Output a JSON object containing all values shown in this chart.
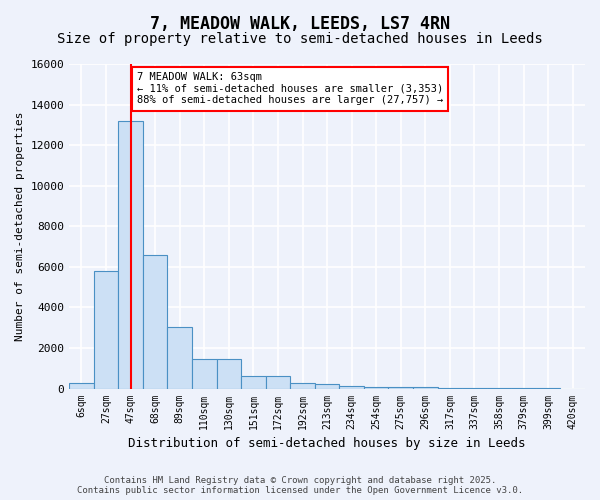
{
  "title": "7, MEADOW WALK, LEEDS, LS7 4RN",
  "subtitle": "Size of property relative to semi-detached houses in Leeds",
  "xlabel": "Distribution of semi-detached houses by size in Leeds",
  "ylabel": "Number of semi-detached properties",
  "bin_labels": [
    "6sqm",
    "27sqm",
    "47sqm",
    "68sqm",
    "89sqm",
    "110sqm",
    "130sqm",
    "151sqm",
    "172sqm",
    "192sqm",
    "213sqm",
    "234sqm",
    "254sqm",
    "275sqm",
    "296sqm",
    "317sqm",
    "337sqm",
    "358sqm",
    "379sqm",
    "399sqm",
    "420sqm"
  ],
  "bar_values": [
    250,
    5800,
    13200,
    6600,
    3050,
    1450,
    1450,
    600,
    600,
    250,
    200,
    150,
    100,
    80,
    60,
    40,
    30,
    20,
    10,
    5,
    0
  ],
  "bar_color": "#cce0f5",
  "bar_edge_color": "#4a90c4",
  "property_size": 63,
  "red_line_x": 2,
  "annotation_text": "7 MEADOW WALK: 63sqm\n← 11% of semi-detached houses are smaller (3,353)\n88% of semi-detached houses are larger (27,757) →",
  "ylim": [
    0,
    16000
  ],
  "yticks": [
    0,
    2000,
    4000,
    6000,
    8000,
    10000,
    12000,
    14000,
    16000
  ],
  "footer_line1": "Contains HM Land Registry data © Crown copyright and database right 2025.",
  "footer_line2": "Contains public sector information licensed under the Open Government Licence v3.0.",
  "bg_color": "#eef2fb",
  "grid_color": "#ffffff",
  "title_fontsize": 12,
  "subtitle_fontsize": 10
}
